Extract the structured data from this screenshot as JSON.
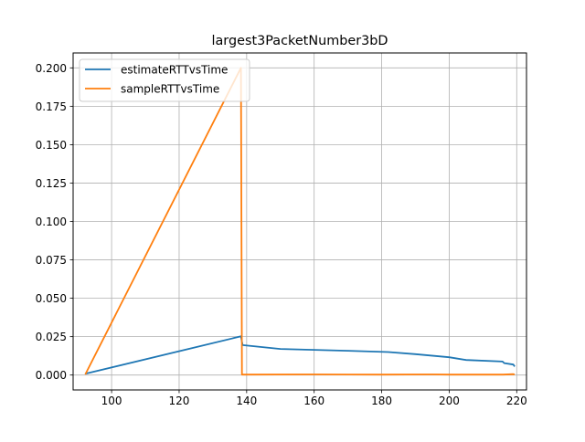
{
  "chart_data": {
    "type": "line",
    "title": "largest3PacketNumber3bD",
    "xlabel": "",
    "ylabel": "",
    "xlim": [
      88.6,
      222.9
    ],
    "ylim": [
      -0.0097,
      0.2097
    ],
    "x_ticks": [
      100,
      120,
      140,
      160,
      180,
      200,
      220
    ],
    "x_tick_labels": [
      "100",
      "120",
      "140",
      "160",
      "180",
      "200",
      "220"
    ],
    "y_ticks": [
      0.0,
      0.025,
      0.05,
      0.075,
      0.1,
      0.125,
      0.15,
      0.175,
      0.2
    ],
    "y_tick_labels": [
      "0.000",
      "0.025",
      "0.050",
      "0.075",
      "0.100",
      "0.125",
      "0.150",
      "0.175",
      "0.200"
    ],
    "grid": true,
    "legend_position": "top-left",
    "series": [
      {
        "name": "estimateRTTvsTime",
        "color": "#1f77b4",
        "points": [
          [
            92.2,
            0.0008
          ],
          [
            138.3,
            0.0252
          ],
          [
            138.8,
            0.0195
          ],
          [
            150.0,
            0.017
          ],
          [
            160.0,
            0.0164
          ],
          [
            170.0,
            0.0158
          ],
          [
            182.0,
            0.015
          ],
          [
            190.0,
            0.0136
          ],
          [
            200.0,
            0.0116
          ],
          [
            205.0,
            0.0098
          ],
          [
            215.8,
            0.0088
          ],
          [
            216.3,
            0.0078
          ],
          [
            219.0,
            0.0068
          ],
          [
            219.4,
            0.0055
          ]
        ]
      },
      {
        "name": "sampleRTTvsTime",
        "color": "#ff7f0e",
        "points": [
          [
            92.2,
            0.0004
          ],
          [
            138.3,
            0.2
          ],
          [
            138.6,
            0.0003
          ],
          [
            160.0,
            0.0004
          ],
          [
            180.0,
            0.0003
          ],
          [
            195.0,
            0.0004
          ],
          [
            200.0,
            0.0003
          ],
          [
            216.0,
            0.0003
          ],
          [
            219.0,
            0.0006
          ],
          [
            219.4,
            0.0004
          ]
        ]
      }
    ]
  }
}
